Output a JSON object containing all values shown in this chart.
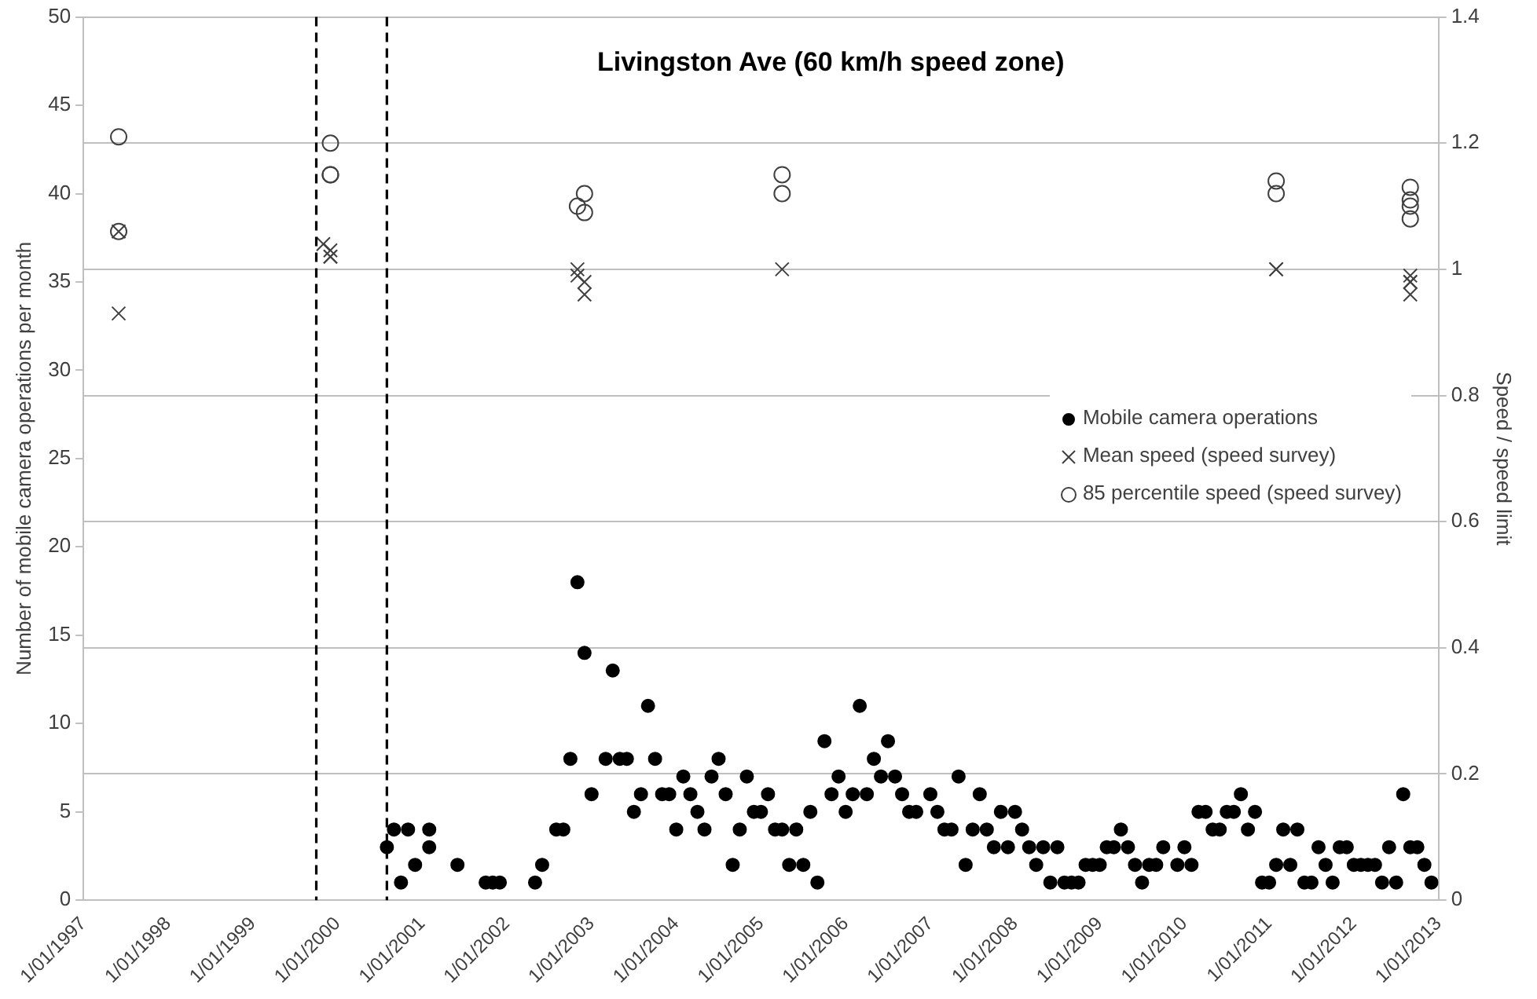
{
  "chart_data": {
    "type": "scatter",
    "title": "Livingston Ave (60 km/h speed zone)",
    "ylabel": "Number of mobile camera operations per month",
    "y2label": "Speed / speed limit",
    "xlim": [
      "1997-01",
      "2013-01"
    ],
    "xticks": [
      {
        "value": "1997-01",
        "label": "1/01/1997"
      },
      {
        "value": "1998-01",
        "label": "1/01/1998"
      },
      {
        "value": "1999-01",
        "label": "1/01/1999"
      },
      {
        "value": "2000-01",
        "label": "1/01/2000"
      },
      {
        "value": "2001-01",
        "label": "1/01/2001"
      },
      {
        "value": "2002-01",
        "label": "1/01/2002"
      },
      {
        "value": "2003-01",
        "label": "1/01/2003"
      },
      {
        "value": "2004-01",
        "label": "1/01/2004"
      },
      {
        "value": "2005-01",
        "label": "1/01/2005"
      },
      {
        "value": "2006-01",
        "label": "1/01/2006"
      },
      {
        "value": "2007-01",
        "label": "1/01/2007"
      },
      {
        "value": "2008-01",
        "label": "1/01/2008"
      },
      {
        "value": "2009-01",
        "label": "1/01/2009"
      },
      {
        "value": "2010-01",
        "label": "1/01/2010"
      },
      {
        "value": "2011-01",
        "label": "1/01/2011"
      },
      {
        "value": "2012-01",
        "label": "1/01/2012"
      },
      {
        "value": "2013-01",
        "label": "1/01/2013"
      }
    ],
    "ylim": [
      0,
      50
    ],
    "yticks": [
      0,
      5,
      10,
      15,
      20,
      25,
      30,
      35,
      40,
      45,
      50
    ],
    "y2lim": [
      0,
      1.4
    ],
    "y2ticks": [
      0,
      0.2,
      0.4,
      0.6,
      0.8,
      1,
      1.2,
      1.4
    ],
    "grid": "y",
    "legend": "right",
    "ref_lines": [
      {
        "axis": "x",
        "value": "1999-10",
        "color": "#000000",
        "line_style": "dashed"
      },
      {
        "axis": "x",
        "value": "2000-08",
        "color": "#000000",
        "line_style": "dashed"
      }
    ],
    "series": [
      {
        "name": "Mobile camera operations",
        "color": "#000000",
        "marker": "circle",
        "axis": "y",
        "x": [
          "2000-08",
          "2000-09",
          "2000-10",
          "2000-11",
          "2000-12",
          "2001-02",
          "2001-02",
          "2001-06",
          "2001-10",
          "2001-11",
          "2001-12",
          "2002-05",
          "2002-06",
          "2002-08",
          "2002-09",
          "2002-10",
          "2002-11",
          "2002-12",
          "2003-01",
          "2003-03",
          "2003-04",
          "2003-05",
          "2003-06",
          "2003-07",
          "2003-08",
          "2003-09",
          "2003-10",
          "2003-11",
          "2003-12",
          "2004-01",
          "2004-02",
          "2004-03",
          "2004-04",
          "2004-05",
          "2004-06",
          "2004-07",
          "2004-08",
          "2004-09",
          "2004-10",
          "2004-11",
          "2004-12",
          "2005-01",
          "2005-02",
          "2005-03",
          "2005-04",
          "2005-05",
          "2005-06",
          "2005-07",
          "2005-08",
          "2005-09",
          "2005-10",
          "2005-11",
          "2005-12",
          "2006-01",
          "2006-02",
          "2006-03",
          "2006-04",
          "2006-05",
          "2006-06",
          "2006-07",
          "2006-08",
          "2006-09",
          "2006-10",
          "2006-11",
          "2007-01",
          "2007-02",
          "2007-03",
          "2007-04",
          "2007-05",
          "2007-06",
          "2007-07",
          "2007-08",
          "2007-09",
          "2007-10",
          "2007-11",
          "2007-12",
          "2008-01",
          "2008-02",
          "2008-03",
          "2008-04",
          "2008-05",
          "2008-06",
          "2008-07",
          "2008-08",
          "2008-09",
          "2008-10",
          "2008-11",
          "2008-12",
          "2009-01",
          "2009-02",
          "2009-03",
          "2009-04",
          "2009-05",
          "2009-06",
          "2009-07",
          "2009-08",
          "2009-09",
          "2009-10",
          "2009-12",
          "2010-01",
          "2010-02",
          "2010-03",
          "2010-04",
          "2010-05",
          "2010-06",
          "2010-07",
          "2010-08",
          "2010-09",
          "2010-10",
          "2010-11",
          "2010-12",
          "2011-01",
          "2011-02",
          "2011-03",
          "2011-04",
          "2011-05",
          "2011-06",
          "2011-07",
          "2011-08",
          "2011-09",
          "2011-10",
          "2011-11",
          "2011-12",
          "2012-01",
          "2012-02",
          "2012-03",
          "2012-04",
          "2012-05",
          "2012-06",
          "2012-07",
          "2012-08",
          "2012-09",
          "2012-10",
          "2012-11",
          "2012-12"
        ],
        "values": [
          3,
          4,
          1,
          4,
          2,
          4,
          3,
          2,
          1,
          1,
          1,
          1,
          2,
          4,
          4,
          8,
          18,
          14,
          6,
          8,
          13,
          8,
          8,
          5,
          6,
          11,
          8,
          6,
          6,
          4,
          7,
          6,
          5,
          4,
          7,
          8,
          6,
          2,
          4,
          7,
          5,
          5,
          6,
          4,
          4,
          2,
          4,
          2,
          5,
          1,
          9,
          6,
          7,
          5,
          6,
          11,
          6,
          8,
          7,
          9,
          7,
          6,
          5,
          5,
          6,
          5,
          4,
          4,
          7,
          2,
          4,
          6,
          4,
          3,
          5,
          3,
          5,
          4,
          3,
          2,
          3,
          1,
          3,
          1,
          1,
          1,
          2,
          2,
          2,
          3,
          3,
          4,
          3,
          2,
          1,
          2,
          2,
          3,
          2,
          3,
          2,
          5,
          5,
          4,
          4,
          5,
          5,
          6,
          4,
          5,
          1,
          1,
          2,
          4,
          2,
          4,
          1,
          1,
          3,
          2,
          1,
          3,
          3,
          2,
          2,
          2,
          2,
          1,
          3,
          1,
          6,
          3,
          3,
          2,
          1
        ]
      },
      {
        "name": "Mean speed (speed survey)",
        "color": "#404040",
        "marker": "cross",
        "axis": "y2",
        "x": [
          "1997-06",
          "1997-06",
          "1999-11",
          "1999-12",
          "1999-12",
          "1999-12",
          "2002-11",
          "2002-11",
          "2002-12",
          "2002-12",
          "2005-04",
          "2011-02",
          "2011-02",
          "2012-09",
          "2012-09",
          "2012-09",
          "2012-09"
        ],
        "values": [
          1.06,
          0.93,
          1.04,
          1.03,
          1.02,
          1.02,
          1.0,
          0.99,
          0.98,
          0.96,
          1.0,
          1.0,
          1.0,
          0.99,
          0.98,
          0.98,
          0.96
        ]
      },
      {
        "name": "85 percentile speed (speed survey)",
        "color": "#404040",
        "marker": "circle-open",
        "axis": "y2",
        "x": [
          "1997-06",
          "1997-06",
          "1999-12",
          "1999-12",
          "1999-12",
          "2002-11",
          "2002-12",
          "2002-12",
          "2005-04",
          "2005-04",
          "2011-02",
          "2011-02",
          "2012-09",
          "2012-09",
          "2012-09",
          "2012-09"
        ],
        "values": [
          1.21,
          1.06,
          1.2,
          1.15,
          1.15,
          1.1,
          1.12,
          1.09,
          1.15,
          1.12,
          1.14,
          1.12,
          1.13,
          1.11,
          1.1,
          1.08
        ]
      }
    ]
  }
}
